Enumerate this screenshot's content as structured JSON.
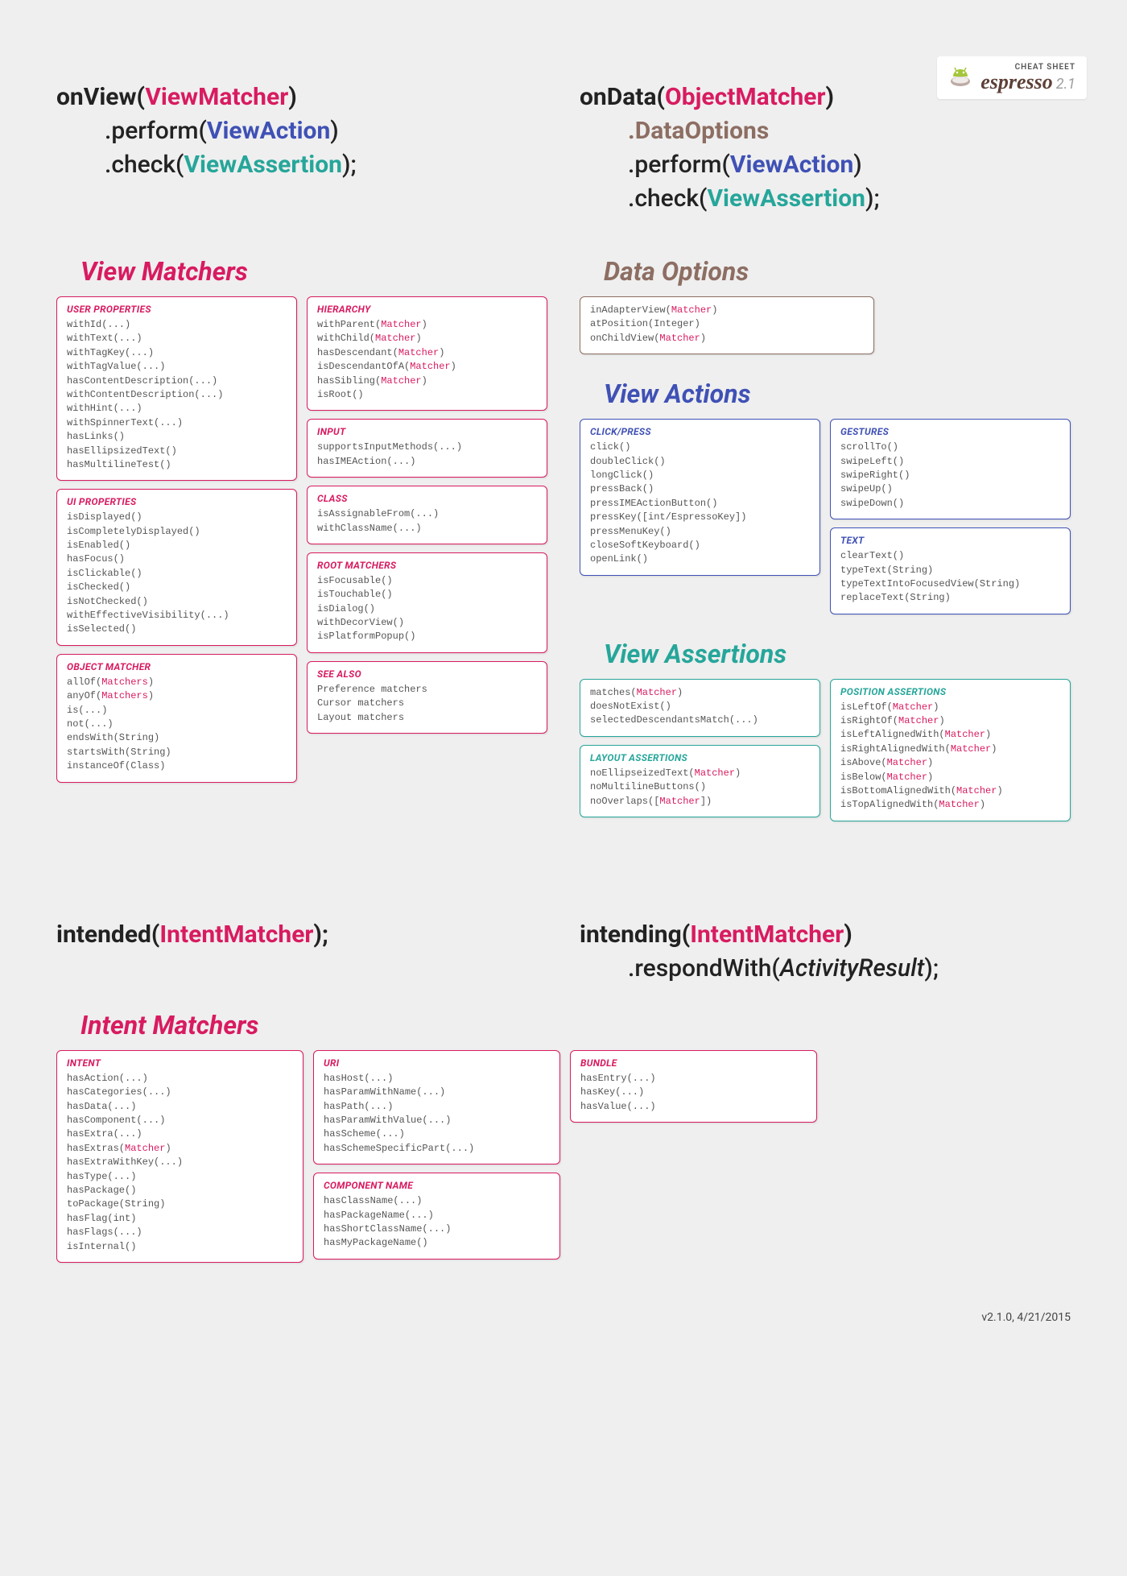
{
  "logo": {
    "cheat": "CHEAT SHEET",
    "brand": "espresso",
    "version": "2.1"
  },
  "syntax": {
    "onView": {
      "l1a": "onView",
      "l1b": "ViewMatcher",
      "l2a": ".perform(",
      "l2b": "ViewAction",
      "l2c": ")",
      "l3a": ".check(",
      "l3b": "ViewAssertion",
      "l3c": ");"
    },
    "onData": {
      "l1a": "onData",
      "l1b": "ObjectMatcher",
      "l2": ".DataOptions",
      "l3a": ".perform(",
      "l3b": "ViewAction",
      "l3c": ")",
      "l4a": ".check(",
      "l4b": "ViewAssertion",
      "l4c": ");"
    },
    "intended": {
      "a": "intended",
      "b": "IntentMatcher",
      "c": ");"
    },
    "intending": {
      "a": "intending",
      "b": "IntentMatcher",
      "c": ")",
      "d": ".respondWith(",
      "e": "ActivityResult",
      "f": ");"
    }
  },
  "sections": {
    "viewMatchers": "View Matchers",
    "dataOptions": "Data Options",
    "viewActions": "View Actions",
    "viewAssertions": "View Assertions",
    "intentMatchers": "Intent Matchers"
  },
  "cards": {
    "userProps": {
      "title": "USER PROPERTIES",
      "body": "withId(...)\nwithText(...)\nwithTagKey(...)\nwithTagValue(...)\nhasContentDescription(...)\nwithContentDescription(...)\nwithHint(...)\nwithSpinnerText(...)\nhasLinks()\nhasEllipsizedText()\nhasMultilineTest()"
    },
    "uiProps": {
      "title": "UI PROPERTIES",
      "body": "isDisplayed()\nisCompletelyDisplayed()\nisEnabled()\nhasFocus()\nisClickable()\nisChecked()\nisNotChecked()\nwithEffectiveVisibility(...)\nisSelected()"
    },
    "objMatcher": {
      "title": "OBJECT MATCHER",
      "lines": [
        [
          "allOf(",
          "Matchers",
          ")"
        ],
        [
          "anyOf(",
          "Matchers",
          ")"
        ],
        [
          "is(...)",
          "",
          ""
        ],
        [
          "not(...)",
          "",
          ""
        ],
        [
          "endsWith(String)",
          "",
          ""
        ],
        [
          "startsWith(String)",
          "",
          ""
        ],
        [
          "instanceOf(Class)",
          "",
          ""
        ]
      ]
    },
    "hierarchy": {
      "title": "HIERARCHY",
      "lines": [
        [
          "withParent(",
          "Matcher",
          ")"
        ],
        [
          "withChild(",
          "Matcher",
          ")"
        ],
        [
          "hasDescendant(",
          "Matcher",
          ")"
        ],
        [
          "isDescendantOfA(",
          "Matcher",
          ")"
        ],
        [
          "hasSibling(",
          "Matcher",
          ")"
        ],
        [
          "isRoot()",
          "",
          ""
        ]
      ]
    },
    "input": {
      "title": "INPUT",
      "body": "supportsInputMethods(...)\nhasIMEAction(...)"
    },
    "klass": {
      "title": "CLASS",
      "body": "isAssignableFrom(...)\nwithClassName(...)"
    },
    "rootM": {
      "title": "ROOT MATCHERS",
      "body": "isFocusable()\nisTouchable()\nisDialog()\nwithDecorView()\nisPlatformPopup()"
    },
    "seeAlso": {
      "title": "SEE ALSO",
      "body": "Preference matchers\nCursor matchers\nLayout matchers"
    },
    "dataOpts": {
      "lines": [
        [
          "inAdapterView(",
          "Matcher",
          ")"
        ],
        [
          "atPosition(Integer)",
          "",
          ""
        ],
        [
          "onChildView(",
          "Matcher",
          ")"
        ]
      ]
    },
    "clickPress": {
      "title": "CLICK/PRESS",
      "body": "click()\ndoubleClick()\nlongClick()\npressBack()\npressIMEActionButton()\npressKey([int/EspressoKey])\npressMenuKey()\ncloseSoftKeyboard()\nopenLink()"
    },
    "gestures": {
      "title": "GESTURES",
      "body": "scrollTo()\nswipeLeft()\nswipeRight()\nswipeUp()\nswipeDown()"
    },
    "text": {
      "title": "TEXT",
      "body": "clearText()\ntypeText(String)\ntypeTextIntoFocusedView(String)\nreplaceText(String)"
    },
    "assertMain": {
      "lines": [
        [
          "matches(",
          "Matcher",
          ")"
        ],
        [
          "doesNotExist()",
          "",
          ""
        ],
        [
          "selectedDescendantsMatch(...)",
          "",
          ""
        ]
      ]
    },
    "layoutA": {
      "title": "LAYOUT ASSERTIONS",
      "lines": [
        [
          "noEllipseizedText(",
          "Matcher",
          ")"
        ],
        [
          "noMultilineButtons()",
          "",
          ""
        ],
        [
          "noOverlaps([",
          "Matcher",
          "])"
        ]
      ]
    },
    "posA": {
      "title": "POSITION ASSERTIONS",
      "lines": [
        [
          "isLeftOf(",
          "Matcher",
          ")"
        ],
        [
          "isRightOf(",
          "Matcher",
          ")"
        ],
        [
          "isLeftAlignedWith(",
          "Matcher",
          ")"
        ],
        [
          "isRightAlignedWith(",
          "Matcher",
          ")"
        ],
        [
          "isAbove(",
          "Matcher",
          ")"
        ],
        [
          "isBelow(",
          "Matcher",
          ")"
        ],
        [
          "isBottomAlignedWith(",
          "Matcher",
          ")"
        ],
        [
          "isTopAlignedWith(",
          "Matcher",
          ")"
        ]
      ]
    },
    "intent": {
      "title": "INTENT",
      "lines": [
        [
          "hasAction(...)",
          "",
          ""
        ],
        [
          "hasCategories(...)",
          "",
          ""
        ],
        [
          "hasData(...)",
          "",
          ""
        ],
        [
          "hasComponent(...)",
          "",
          ""
        ],
        [
          "hasExtra(...)",
          "",
          ""
        ],
        [
          "hasExtras(",
          "Matcher",
          ")"
        ],
        [
          "hasExtraWithKey(...)",
          "",
          ""
        ],
        [
          "hasType(...)",
          "",
          ""
        ],
        [
          "hasPackage()",
          "",
          ""
        ],
        [
          "toPackage(String)",
          "",
          ""
        ],
        [
          "hasFlag(int)",
          "",
          ""
        ],
        [
          "hasFlags(...)",
          "",
          ""
        ],
        [
          "isInternal()",
          "",
          ""
        ]
      ]
    },
    "uri": {
      "title": "URI",
      "body": "hasHost(...)\nhasParamWithName(...)\nhasPath(...)\nhasParamWithValue(...)\nhasScheme(...)\nhasSchemeSpecificPart(...)"
    },
    "compName": {
      "title": "COMPONENT NAME",
      "body": "hasClassName(...)\nhasPackageName(...)\nhasShortClassName(...)\nhasMyPackageName()"
    },
    "bundle": {
      "title": "BUNDLE",
      "body": "hasEntry(...)\nhasKey(...)\nhasValue(...)"
    }
  },
  "footer": "v2.1.0, 4/21/2015"
}
